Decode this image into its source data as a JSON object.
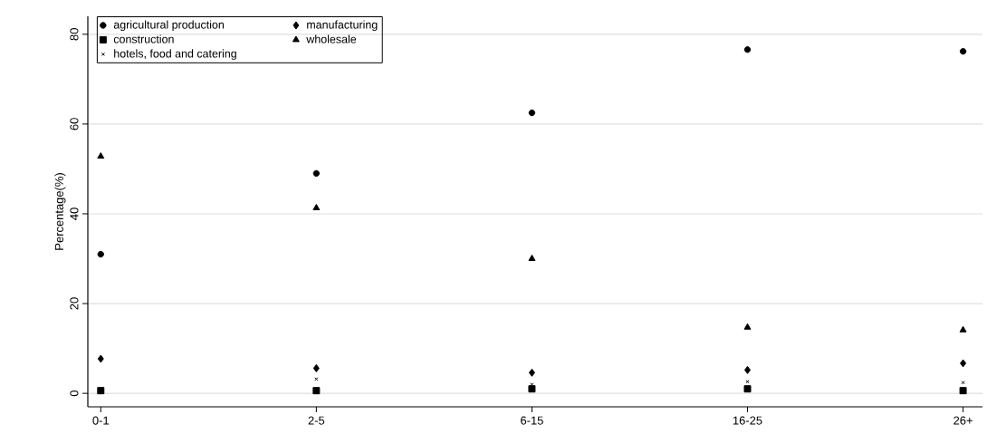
{
  "chart_data": {
    "type": "scatter",
    "ylabel": "Percentage(%)",
    "categories": [
      "0-1",
      "2-5",
      "6-15",
      "16-25",
      "26+"
    ],
    "series": [
      {
        "name": "agricultural production",
        "color": "#000000",
        "marker": "circle",
        "values": [
          31.0,
          49.0,
          62.5,
          76.6,
          76.2
        ]
      },
      {
        "name": "manufacturing",
        "color": "#000000",
        "marker": "diamond",
        "values": [
          7.7,
          5.6,
          4.6,
          5.2,
          6.7
        ]
      },
      {
        "name": "construction",
        "color": "#000000",
        "marker": "square",
        "values": [
          0.6,
          0.6,
          1.0,
          1.0,
          0.6
        ]
      },
      {
        "name": "wholesale",
        "color": "#000000",
        "marker": "triangle",
        "values": [
          52.8,
          41.3,
          30.0,
          14.7,
          14.1
        ]
      },
      {
        "name": "hotels, food and catering",
        "color": "#000000",
        "marker": "cross",
        "values": [
          null,
          3.2,
          2.0,
          2.6,
          2.4
        ]
      }
    ],
    "ylim": [
      -3,
      84
    ],
    "yticks": [
      0,
      20,
      40,
      60,
      80
    ],
    "grid": "y",
    "legend": "top left"
  }
}
